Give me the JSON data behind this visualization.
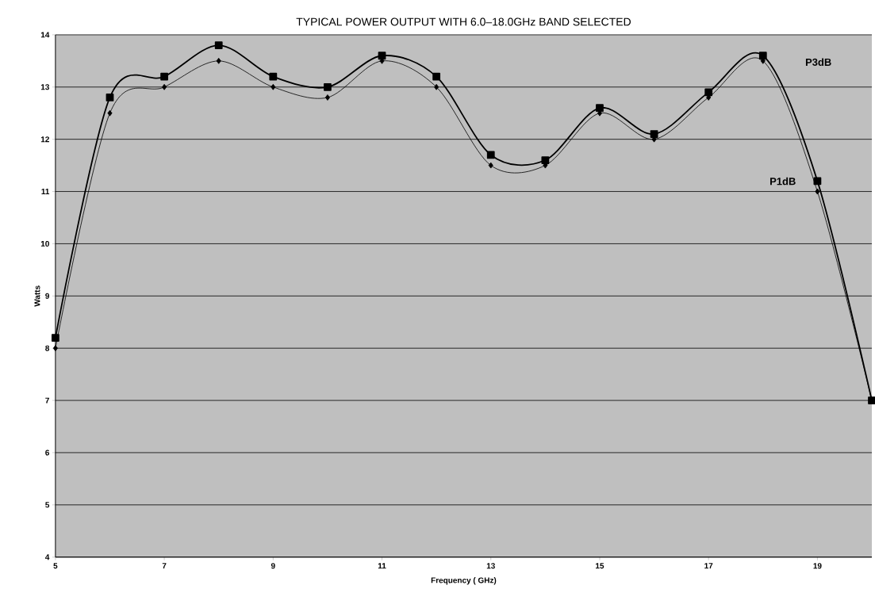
{
  "chart_data": {
    "type": "line",
    "title": "TYPICAL POWER OUTPUT WITH 6.0–18.0GHz BAND SELECTED",
    "xlabel": "Frequency ( GHz)",
    "ylabel": "Watts",
    "x": [
      5,
      6,
      7,
      8,
      9,
      10,
      11,
      12,
      13,
      14,
      15,
      16,
      17,
      18,
      19,
      20
    ],
    "series": [
      {
        "name": "P3dB",
        "color": "#000000",
        "marker": "square",
        "values": [
          8.2,
          12.8,
          13.2,
          13.8,
          13.2,
          13.0,
          13.6,
          13.2,
          11.7,
          11.6,
          12.6,
          12.1,
          12.9,
          13.6,
          11.2,
          7.0
        ]
      },
      {
        "name": "P1dB",
        "color": "#000000",
        "marker": "diamond",
        "values": [
          8.0,
          12.5,
          13.0,
          13.5,
          13.0,
          12.8,
          13.5,
          13.0,
          11.5,
          11.5,
          12.5,
          12.0,
          12.8,
          13.5,
          11.0,
          7.0
        ]
      }
    ],
    "xlim": [
      5,
      20
    ],
    "xticks": [
      5,
      7,
      9,
      11,
      13,
      15,
      17,
      19
    ],
    "ylim": [
      4,
      14
    ],
    "yticks": [
      4,
      5,
      6,
      7,
      8,
      9,
      10,
      11,
      12,
      13,
      14
    ],
    "grid": "y",
    "line_style": "solid"
  }
}
